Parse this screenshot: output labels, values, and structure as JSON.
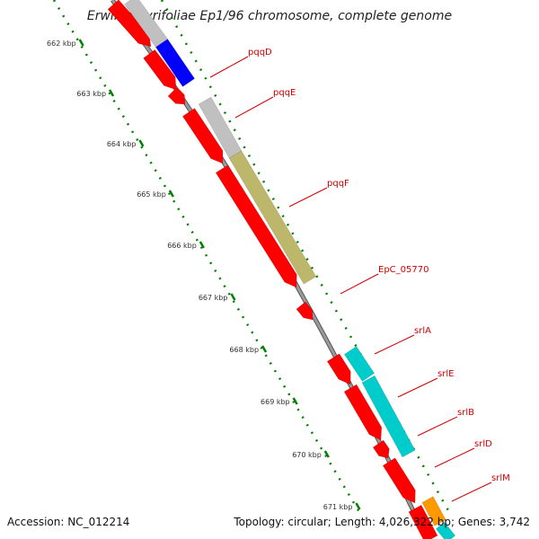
{
  "title": "Erwinia pyrifoliae Ep1/96 chromosome, complete genome",
  "footer": {
    "accession": "Accession: NC_012214",
    "summary": "Topology: circular; Length: 4,026,322 bp; Genes: 3,742"
  },
  "ticks": [
    "662 kbp",
    "663 kbp",
    "664 kbp",
    "665 kbp",
    "666 kbp",
    "667 kbp",
    "668 kbp",
    "669 kbp",
    "670 kbp",
    "671 kbp"
  ],
  "genes": [
    {
      "label": "pqqD"
    },
    {
      "label": "pqqE"
    },
    {
      "label": "pqqF"
    },
    {
      "label": "EpC_05770"
    },
    {
      "label": "srlA"
    },
    {
      "label": "srlE"
    },
    {
      "label": "srlB"
    },
    {
      "label": "srlD"
    },
    {
      "label": "srlM"
    }
  ],
  "colors": {
    "cds": "#ff0000",
    "gray_feature": "#c0c0c0",
    "blue_feature": "#0000ff",
    "olive_feature": "#bdb76b",
    "cyan_feature": "#00cccc",
    "orange_feature": "#ff9900",
    "backbone": "#888888",
    "tick": "#008000",
    "label": "#cc0000"
  }
}
